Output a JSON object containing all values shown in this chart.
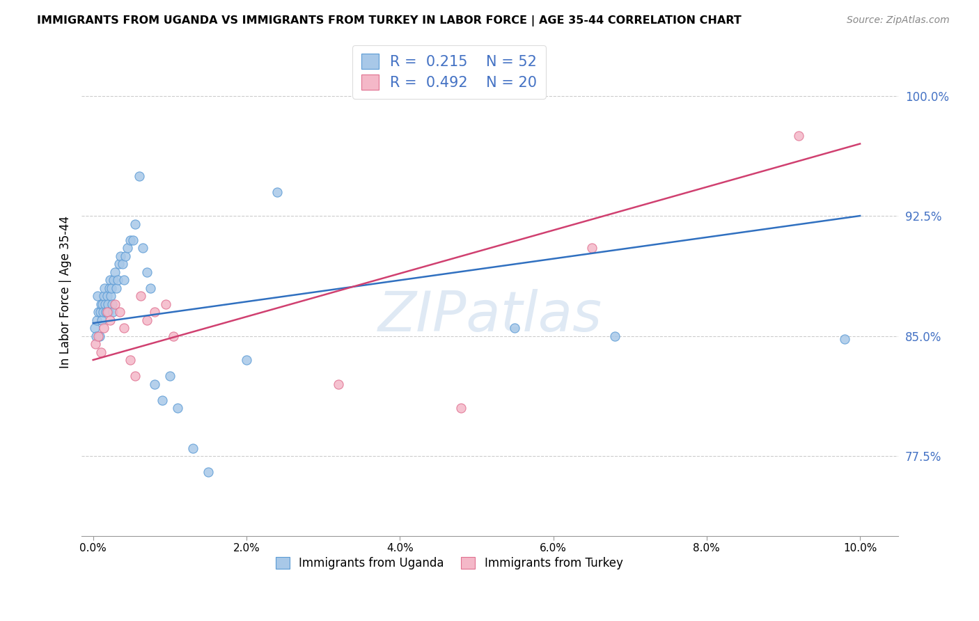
{
  "title": "IMMIGRANTS FROM UGANDA VS IMMIGRANTS FROM TURKEY IN LABOR FORCE | AGE 35-44 CORRELATION CHART",
  "source": "Source: ZipAtlas.com",
  "ylabel": "In Labor Force | Age 35-44",
  "y_ticks": [
    77.5,
    85.0,
    92.5,
    100.0
  ],
  "y_tick_labels": [
    "77.5%",
    "85.0%",
    "92.5%",
    "100.0%"
  ],
  "x_ticks": [
    0.0,
    2.0,
    4.0,
    6.0,
    8.0,
    10.0
  ],
  "x_tick_labels": [
    "0.0%",
    "2.0%",
    "4.0%",
    "6.0%",
    "8.0%",
    "10.0%"
  ],
  "xlim": [
    -0.15,
    10.5
  ],
  "ylim": [
    72.5,
    103.0
  ],
  "blue_fill": "#a8c8e8",
  "blue_edge": "#5b9bd5",
  "pink_fill": "#f4b8c8",
  "pink_edge": "#e07090",
  "line_blue_color": "#3070c0",
  "line_pink_color": "#d04070",
  "legend_R_blue": "0.215",
  "legend_N_blue": "52",
  "legend_R_pink": "0.492",
  "legend_N_pink": "20",
  "legend_text_color": "#4472c4",
  "ytick_color": "#4472c4",
  "watermark": "ZIPatlas",
  "uganda_x": [
    0.02,
    0.04,
    0.05,
    0.06,
    0.07,
    0.08,
    0.09,
    0.1,
    0.11,
    0.12,
    0.13,
    0.14,
    0.15,
    0.16,
    0.17,
    0.18,
    0.19,
    0.2,
    0.21,
    0.22,
    0.23,
    0.24,
    0.25,
    0.26,
    0.27,
    0.28,
    0.3,
    0.32,
    0.34,
    0.36,
    0.38,
    0.4,
    0.42,
    0.45,
    0.48,
    0.52,
    0.55,
    0.6,
    0.65,
    0.7,
    0.75,
    0.8,
    0.9,
    1.0,
    1.1,
    1.3,
    1.5,
    2.0,
    2.4,
    5.5,
    6.8,
    9.8
  ],
  "uganda_y": [
    85.5,
    85.0,
    86.0,
    87.5,
    86.5,
    85.0,
    86.5,
    87.0,
    86.0,
    87.0,
    86.5,
    87.5,
    88.0,
    87.0,
    86.5,
    87.5,
    87.0,
    86.5,
    88.0,
    88.5,
    87.5,
    88.0,
    87.0,
    86.5,
    88.5,
    89.0,
    88.0,
    88.5,
    89.5,
    90.0,
    89.5,
    88.5,
    90.0,
    90.5,
    91.0,
    91.0,
    92.0,
    95.0,
    90.5,
    89.0,
    88.0,
    82.0,
    81.0,
    82.5,
    80.5,
    78.0,
    76.5,
    83.5,
    94.0,
    85.5,
    85.0,
    84.8
  ],
  "turkey_x": [
    0.03,
    0.07,
    0.1,
    0.14,
    0.18,
    0.22,
    0.28,
    0.35,
    0.4,
    0.48,
    0.55,
    0.62,
    0.7,
    0.8,
    0.95,
    1.05,
    3.2,
    4.8,
    6.5,
    9.2
  ],
  "turkey_y": [
    84.5,
    85.0,
    84.0,
    85.5,
    86.5,
    86.0,
    87.0,
    86.5,
    85.5,
    83.5,
    82.5,
    87.5,
    86.0,
    86.5,
    87.0,
    85.0,
    82.0,
    80.5,
    90.5,
    97.5
  ],
  "line_blue_x0": 0.0,
  "line_blue_y0": 85.8,
  "line_blue_x1": 10.0,
  "line_blue_y1": 92.5,
  "line_pink_x0": 0.0,
  "line_pink_y0": 83.5,
  "line_pink_x1": 10.0,
  "line_pink_y1": 97.0
}
